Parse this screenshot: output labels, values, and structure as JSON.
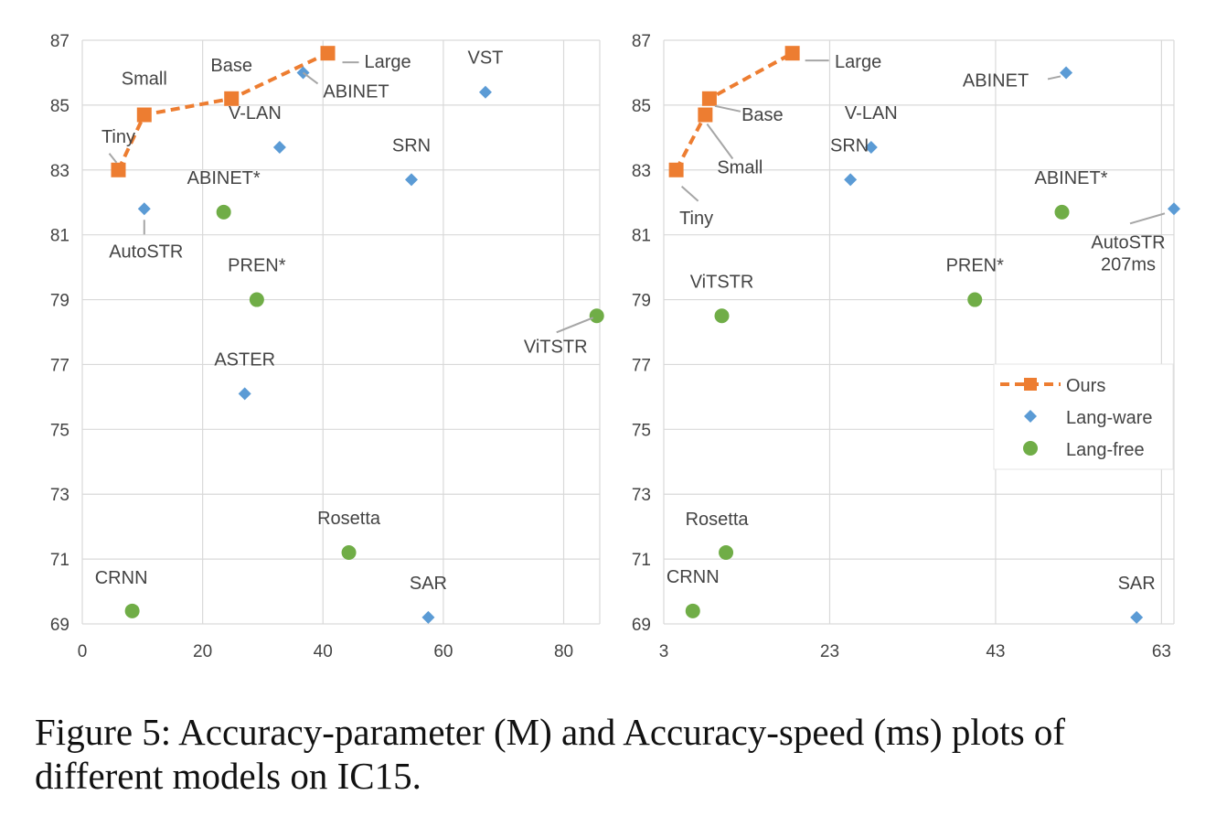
{
  "colors": {
    "ours": "#ed7d31",
    "lang_ware": "#5b9bd5",
    "lang_free": "#70ad47",
    "grid": "#d9d9d9",
    "text": "#444444",
    "leader": "#a6a6a6"
  },
  "legend": {
    "ours": "Ours",
    "lang_ware": "Lang-ware",
    "lang_free": "Lang-free"
  },
  "caption": "Figure 5: Accuracy-parameter (M) and Accuracy-speed (ms) plots of different models on IC15.",
  "chart_data": [
    {
      "type": "scatter",
      "xlim": [
        0,
        86
      ],
      "ylim": [
        69,
        87
      ],
      "xticks": [
        0,
        20,
        40,
        60,
        80
      ],
      "yticks": [
        69,
        71,
        73,
        75,
        77,
        79,
        81,
        83,
        85,
        87
      ],
      "grid": true,
      "series": [
        {
          "key": "ours",
          "marker": "square",
          "line": "dashed",
          "points": [
            {
              "label": "Tiny",
              "x": 6,
              "y": 83.0
            },
            {
              "label": "Small",
              "x": 10.3,
              "y": 84.7
            },
            {
              "label": "Base",
              "x": 24.8,
              "y": 85.2
            },
            {
              "label": "Large",
              "x": 40.8,
              "y": 86.6
            }
          ]
        },
        {
          "key": "lang_ware",
          "marker": "diamond",
          "points": [
            {
              "label": "AutoSTR",
              "x": 10.3,
              "y": 81.8
            },
            {
              "label": "ABINET",
              "x": 36.7,
              "y": 86.0
            },
            {
              "label": "V-LAN",
              "x": 32.8,
              "y": 83.7
            },
            {
              "label": "SRN",
              "x": 54.7,
              "y": 82.7
            },
            {
              "label": "VST",
              "x": 67,
              "y": 85.4
            },
            {
              "label": "ASTER",
              "x": 27,
              "y": 76.1
            },
            {
              "label": "SAR",
              "x": 57.5,
              "y": 69.2
            }
          ]
        },
        {
          "key": "lang_free",
          "marker": "circle",
          "points": [
            {
              "label": "ABINET*",
              "x": 23.5,
              "y": 81.7
            },
            {
              "label": "PREN*",
              "x": 29,
              "y": 79.0
            },
            {
              "label": "ViTSTR",
              "x": 85.5,
              "y": 78.5
            },
            {
              "label": "Rosetta",
              "x": 44.3,
              "y": 71.2
            },
            {
              "label": "CRNN",
              "x": 8.3,
              "y": 69.4
            }
          ]
        }
      ]
    },
    {
      "type": "scatter",
      "xlim": [
        3,
        64.5
      ],
      "ylim": [
        69,
        87
      ],
      "xticks": [
        3,
        23,
        43,
        63
      ],
      "yticks": [
        69,
        71,
        73,
        75,
        77,
        79,
        81,
        83,
        85,
        87
      ],
      "grid": true,
      "legend_position": "center-right",
      "series": [
        {
          "key": "ours",
          "marker": "square",
          "line": "dashed",
          "points": [
            {
              "label": "Tiny",
              "x": 4.5,
              "y": 83.0
            },
            {
              "label": "Small",
              "x": 8,
              "y": 84.7
            },
            {
              "label": "Base",
              "x": 8.5,
              "y": 85.2
            },
            {
              "label": "Large",
              "x": 18.5,
              "y": 86.6
            }
          ]
        },
        {
          "key": "lang_ware",
          "marker": "diamond",
          "points": [
            {
              "label": "ABINET",
              "x": 51.5,
              "y": 86.0
            },
            {
              "label": "V-LAN",
              "x": 28,
              "y": 83.7
            },
            {
              "label": "SRN",
              "x": 25.5,
              "y": 82.7
            },
            {
              "label": "AutoSTR\n207ms",
              "x": 64.5,
              "y": 81.8
            },
            {
              "label": "SAR",
              "x": 60,
              "y": 69.2
            }
          ]
        },
        {
          "key": "lang_free",
          "marker": "circle",
          "points": [
            {
              "label": "ABINET*",
              "x": 51,
              "y": 81.7
            },
            {
              "label": "PREN*",
              "x": 40.5,
              "y": 79.0
            },
            {
              "label": "ViTSTR",
              "x": 10,
              "y": 78.5
            },
            {
              "label": "Rosetta",
              "x": 10.5,
              "y": 71.2
            },
            {
              "label": "CRNN",
              "x": 6.5,
              "y": 69.4
            }
          ]
        }
      ]
    }
  ]
}
